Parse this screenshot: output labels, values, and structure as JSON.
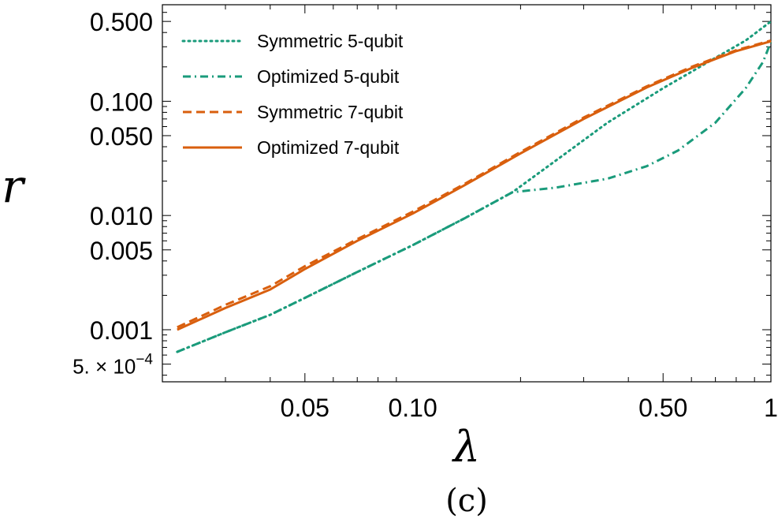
{
  "chart_data": {
    "type": "line",
    "xscale": "log",
    "yscale": "log",
    "xlim": [
      0.02,
      1.0
    ],
    "ylim": [
      0.00035,
      0.7
    ],
    "xlabel": "λ",
    "ylabel": "r",
    "caption": "(c)",
    "legend_position": "top-left",
    "x_ticks": [
      {
        "value": 0.05,
        "label": "0.05"
      },
      {
        "value": 0.1,
        "label": "0.10"
      },
      {
        "value": 0.5,
        "label": "0.50"
      },
      {
        "value": 1.0,
        "label": "1"
      }
    ],
    "y_ticks": [
      {
        "value": 0.0005,
        "label_base": "5. × 10",
        "label_exp": "−4"
      },
      {
        "value": 0.001,
        "label": "0.001"
      },
      {
        "value": 0.005,
        "label": "0.005"
      },
      {
        "value": 0.01,
        "label": "0.010"
      },
      {
        "value": 0.05,
        "label": "0.050"
      },
      {
        "value": 0.1,
        "label": "0.100"
      },
      {
        "value": 0.5,
        "label": "0.500"
      }
    ],
    "series": [
      {
        "name": "Symmetric 5-qubit",
        "color": "#1a9b7b",
        "style": "dotted",
        "x": [
          0.022,
          0.03,
          0.04,
          0.05,
          0.07,
          0.1,
          0.14,
          0.19,
          0.25,
          0.35,
          0.5,
          0.7,
          0.85,
          1.0
        ],
        "y": [
          0.00064,
          0.00095,
          0.00135,
          0.0019,
          0.0032,
          0.0055,
          0.0095,
          0.016,
          0.03,
          0.065,
          0.13,
          0.24,
          0.34,
          0.5
        ]
      },
      {
        "name": "Optimized 5-qubit",
        "color": "#1a9b7b",
        "style": "dashdot",
        "x": [
          0.022,
          0.03,
          0.04,
          0.05,
          0.07,
          0.1,
          0.14,
          0.19,
          0.25,
          0.35,
          0.45,
          0.55,
          0.7,
          0.85,
          0.95,
          1.0
        ],
        "y": [
          0.00064,
          0.00095,
          0.00135,
          0.0019,
          0.0032,
          0.0055,
          0.0095,
          0.016,
          0.0175,
          0.021,
          0.027,
          0.037,
          0.065,
          0.13,
          0.22,
          0.33
        ]
      },
      {
        "name": "Symmetric 7-qubit",
        "color": "#d95f0e",
        "style": "dashed",
        "x": [
          0.022,
          0.03,
          0.04,
          0.05,
          0.07,
          0.1,
          0.14,
          0.2,
          0.3,
          0.45,
          0.6,
          0.8,
          1.0
        ],
        "y": [
          0.00105,
          0.00165,
          0.0024,
          0.0036,
          0.0062,
          0.0108,
          0.019,
          0.036,
          0.072,
          0.135,
          0.2,
          0.28,
          0.34
        ]
      },
      {
        "name": "Optimized 7-qubit",
        "color": "#d95f0e",
        "style": "solid",
        "x": [
          0.022,
          0.03,
          0.04,
          0.05,
          0.07,
          0.1,
          0.14,
          0.2,
          0.3,
          0.45,
          0.6,
          0.8,
          1.0
        ],
        "y": [
          0.001,
          0.00155,
          0.00225,
          0.0034,
          0.006,
          0.0104,
          0.0185,
          0.035,
          0.07,
          0.132,
          0.195,
          0.275,
          0.335
        ]
      }
    ]
  }
}
